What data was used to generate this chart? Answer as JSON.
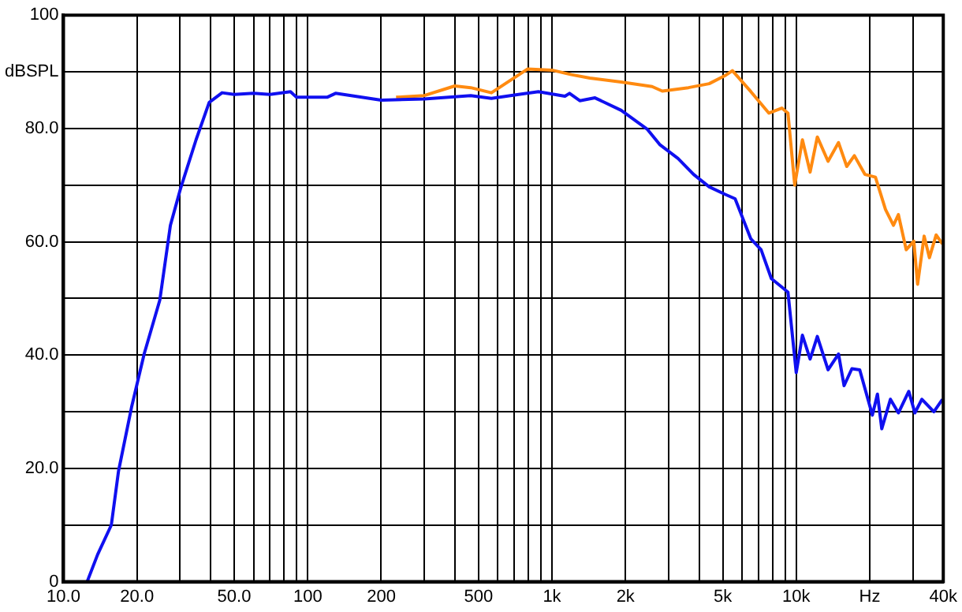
{
  "chart_data": {
    "type": "line",
    "log": "x",
    "grid": true,
    "legend": false,
    "marker": "none",
    "line_style": "solid",
    "xlim": [
      10,
      40000
    ],
    "ylim": [
      0,
      100
    ],
    "xticks": [
      {
        "value": 10,
        "label": "10.0"
      },
      {
        "value": 20,
        "label": "20.0"
      },
      {
        "value": 30,
        "label": null
      },
      {
        "value": 40,
        "label": null
      },
      {
        "value": 50,
        "label": "50.0"
      },
      {
        "value": 60,
        "label": null
      },
      {
        "value": 70,
        "label": null
      },
      {
        "value": 80,
        "label": null
      },
      {
        "value": 90,
        "label": null
      },
      100,
      200,
      {
        "value": 300,
        "label": null
      },
      {
        "value": 400,
        "label": null
      },
      500,
      {
        "value": 600,
        "label": null
      },
      {
        "value": 700,
        "label": null
      },
      {
        "value": 800,
        "label": null
      },
      {
        "value": 900,
        "label": null
      },
      {
        "value": 1000,
        "label": "1k"
      },
      {
        "value": 2000,
        "label": "2k"
      },
      {
        "value": 3000,
        "label": null
      },
      {
        "value": 4000,
        "label": null
      },
      {
        "value": 5000,
        "label": "5k"
      },
      {
        "value": 6000,
        "label": null
      },
      {
        "value": 7000,
        "label": null
      },
      {
        "value": 8000,
        "label": null
      },
      {
        "value": 9000,
        "label": null
      },
      {
        "value": 10000,
        "label": "10k"
      },
      {
        "value": 20000,
        "label": "Hz"
      },
      {
        "value": 30000,
        "label": null
      },
      {
        "value": 40000,
        "label": "40k"
      }
    ],
    "yticks": [
      0,
      {
        "value": 10,
        "label": null
      },
      {
        "value": 20,
        "label": "20.0"
      },
      {
        "value": 30,
        "label": null
      },
      {
        "value": 40,
        "label": "40.0"
      },
      {
        "value": 50,
        "label": null
      },
      {
        "value": 60,
        "label": "60.0"
      },
      {
        "value": 70,
        "label": null
      },
      {
        "value": 80,
        "label": "80.0"
      },
      {
        "value": 90,
        "label": "dBSPL"
      },
      100
    ],
    "series": [
      {
        "color": "#1010f0",
        "x": [
          12.5,
          13.8,
          15.7,
          16.8,
          19,
          21.4,
          24.8,
          27.4,
          30.2,
          34.9,
          39.5,
          44.6,
          50,
          60,
          70,
          85,
          90,
          120,
          130,
          200,
          300,
          465,
          565,
          730,
          880,
          1130,
          1180,
          1300,
          1500,
          1920,
          2450,
          2770,
          3280,
          3800,
          4400,
          5100,
          5620,
          6520,
          7180,
          7910,
          8730,
          9250,
          10000,
          10600,
          11400,
          12200,
          13500,
          14900,
          15700,
          16900,
          18200,
          20500,
          21500,
          22400,
          24300,
          26200,
          28900,
          30600,
          32700,
          36600,
          39700
        ],
        "values": [
          0,
          4.8,
          10,
          19.5,
          30.8,
          40.2,
          49.7,
          62.9,
          69.5,
          78,
          84.6,
          86.3,
          86,
          86.2,
          86,
          86.5,
          85.5,
          85.5,
          86.2,
          85,
          85.2,
          85.8,
          85.3,
          86,
          86.5,
          85.7,
          86.2,
          84.9,
          85.4,
          83.2,
          79.9,
          77.1,
          74.7,
          71.9,
          69.7,
          68.4,
          67.6,
          60.5,
          58.6,
          53.5,
          52,
          51.1,
          36.9,
          43.5,
          39.3,
          43.3,
          37.4,
          40.2,
          34.6,
          37.6,
          37.4,
          29.4,
          33.1,
          27,
          32.2,
          29.8,
          33.6,
          29.8,
          32.2,
          30,
          32.2
        ]
      },
      {
        "color": "#ff8a10",
        "x": [
          230,
          300,
          400,
          465,
          565,
          796,
          1000,
          1200,
          1430,
          1920,
          2570,
          2830,
          3620,
          4400,
          5100,
          5480,
          6520,
          7730,
          8730,
          9250,
          9860,
          10600,
          11400,
          12200,
          13500,
          14900,
          16100,
          17300,
          19100,
          21100,
          23200,
          25000,
          26200,
          28200,
          30300,
          31400,
          33400,
          35100,
          37400,
          39700
        ],
        "values": [
          85.5,
          85.8,
          87.5,
          87.2,
          86.3,
          90.5,
          90.3,
          89.5,
          88.9,
          88.2,
          87.4,
          86.6,
          87.2,
          87.9,
          89.3,
          90.2,
          86.5,
          82.7,
          83.6,
          82.7,
          70,
          78,
          72.3,
          78.5,
          74.2,
          77.5,
          73.3,
          75.2,
          71.9,
          71.4,
          65.7,
          62.9,
          64.8,
          58.6,
          60.1,
          52.5,
          61,
          57.2,
          61.2,
          59.6
        ]
      }
    ]
  }
}
